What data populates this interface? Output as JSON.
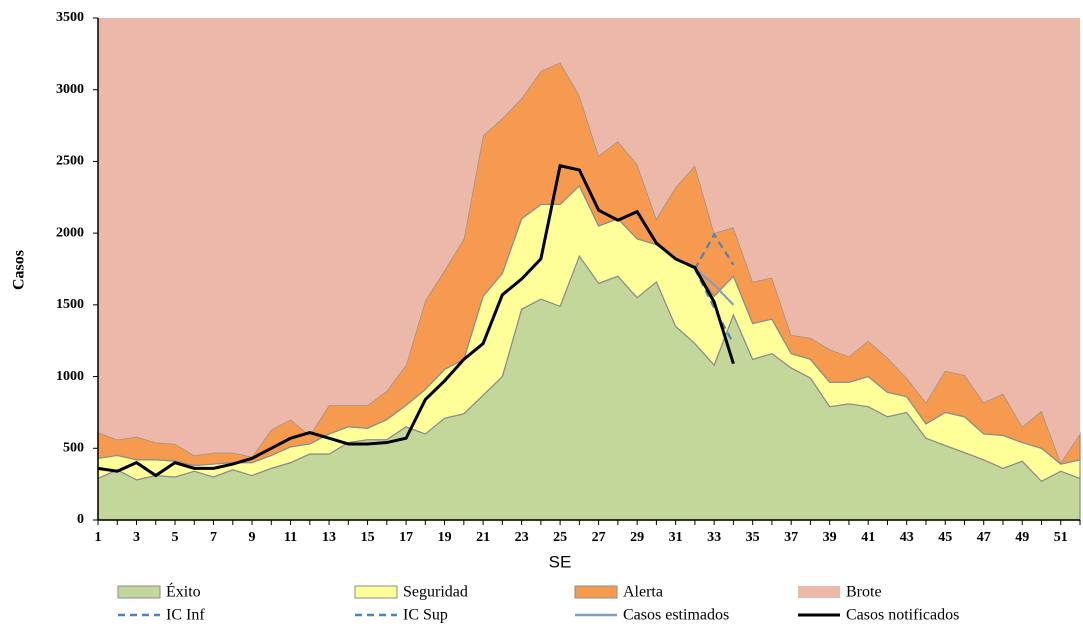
{
  "chart_data": {
    "type": "area",
    "x_label": "SE",
    "y_label": "Casos",
    "x": [
      1,
      2,
      3,
      4,
      5,
      6,
      7,
      8,
      9,
      10,
      11,
      12,
      13,
      14,
      15,
      16,
      17,
      18,
      19,
      20,
      21,
      22,
      23,
      24,
      25,
      26,
      27,
      28,
      29,
      30,
      31,
      32,
      33,
      34,
      35,
      36,
      37,
      38,
      39,
      40,
      41,
      42,
      43,
      44,
      45,
      46,
      47,
      48,
      49,
      50,
      51,
      52
    ],
    "xlim": [
      1,
      52
    ],
    "xticks": [
      1,
      3,
      5,
      7,
      9,
      11,
      13,
      15,
      17,
      19,
      21,
      23,
      25,
      27,
      29,
      31,
      33,
      35,
      37,
      39,
      41,
      43,
      45,
      47,
      49,
      51
    ],
    "ylim": [
      0,
      3500
    ],
    "yticks": [
      0,
      500,
      1000,
      1500,
      2000,
      2500,
      3000,
      3500
    ],
    "series": [
      {
        "name": "Éxito",
        "color": "#c4d79b",
        "style": "area",
        "values": [
          290,
          350,
          280,
          310,
          300,
          340,
          300,
          350,
          310,
          360,
          400,
          460,
          460,
          540,
          560,
          560,
          650,
          600,
          710,
          740,
          870,
          1000,
          1470,
          1540,
          1490,
          1840,
          1650,
          1700,
          1550,
          1660,
          1350,
          1230,
          1080,
          1430,
          1120,
          1160,
          1060,
          990,
          790,
          810,
          790,
          720,
          750,
          570,
          520,
          470,
          420,
          360,
          410,
          270,
          340,
          290
        ]
      },
      {
        "name": "Seguridad",
        "color": "#ffff99",
        "style": "area",
        "values": [
          140,
          100,
          140,
          110,
          110,
          40,
          90,
          50,
          90,
          90,
          110,
          70,
          140,
          110,
          80,
          140,
          150,
          310,
          340,
          380,
          690,
          720,
          630,
          660,
          710,
          490,
          400,
          400,
          410,
          260,
          470,
          520,
          480,
          270,
          250,
          240,
          100,
          130,
          170,
          150,
          210,
          170,
          110,
          100,
          230,
          250,
          180,
          230,
          130,
          230,
          50,
          130
        ]
      },
      {
        "name": "Alerta",
        "color": "#f59a4e",
        "style": "area",
        "values": [
          180,
          110,
          160,
          120,
          120,
          70,
          80,
          70,
          40,
          180,
          190,
          60,
          200,
          150,
          160,
          200,
          280,
          620,
          690,
          840,
          1120,
          1080,
          840,
          930,
          990,
          630,
          490,
          540,
          520,
          180,
          500,
          720,
          440,
          340,
          290,
          290,
          130,
          150,
          230,
          180,
          250,
          240,
          130,
          150,
          290,
          290,
          220,
          290,
          110,
          260,
          10,
          180
        ]
      },
      {
        "name": "Brote",
        "color": "#ebb8aa",
        "style": "fill"
      },
      {
        "name": "IC Inf",
        "color": "#4f81bd",
        "style": "dashed",
        "values": [
          null,
          null,
          null,
          null,
          null,
          null,
          null,
          null,
          null,
          null,
          null,
          null,
          null,
          null,
          null,
          null,
          null,
          null,
          null,
          null,
          null,
          null,
          null,
          null,
          null,
          null,
          null,
          null,
          null,
          null,
          null,
          1750,
          1480,
          1230,
          null,
          null,
          null,
          null,
          null,
          null,
          null,
          null,
          null,
          null,
          null,
          null,
          null,
          null,
          null,
          null,
          null,
          null
        ]
      },
      {
        "name": "IC Sup",
        "color": "#4f81bd",
        "style": "dashed",
        "values": [
          null,
          null,
          null,
          null,
          null,
          null,
          null,
          null,
          null,
          null,
          null,
          null,
          null,
          null,
          null,
          null,
          null,
          null,
          null,
          null,
          null,
          null,
          null,
          null,
          null,
          null,
          null,
          null,
          null,
          null,
          null,
          1750,
          1990,
          1780,
          null,
          null,
          null,
          null,
          null,
          null,
          null,
          null,
          null,
          null,
          null,
          null,
          null,
          null,
          null,
          null,
          null,
          null
        ]
      },
      {
        "name": "Casos estimados",
        "color": "#7f9fc6",
        "style": "solid",
        "values": [
          null,
          null,
          null,
          null,
          null,
          null,
          null,
          null,
          null,
          null,
          null,
          null,
          null,
          null,
          null,
          null,
          null,
          null,
          null,
          null,
          null,
          null,
          null,
          null,
          null,
          null,
          null,
          null,
          null,
          null,
          null,
          1750,
          1640,
          1500,
          null,
          null,
          null,
          null,
          null,
          null,
          null,
          null,
          null,
          null,
          null,
          null,
          null,
          null,
          null,
          null,
          null,
          null
        ]
      },
      {
        "name": "Casos notificados",
        "color": "#000000",
        "style": "solid",
        "values": [
          360,
          340,
          400,
          310,
          400,
          360,
          360,
          390,
          430,
          500,
          570,
          610,
          570,
          530,
          530,
          540,
          570,
          840,
          970,
          1120,
          1230,
          1570,
          1680,
          1820,
          2470,
          2440,
          2160,
          2090,
          2150,
          1930,
          1820,
          1760,
          1520,
          1090,
          null,
          null,
          null,
          null,
          null,
          null,
          null,
          null,
          null,
          null,
          null,
          null,
          null,
          null,
          null,
          null,
          null,
          null
        ]
      }
    ]
  }
}
